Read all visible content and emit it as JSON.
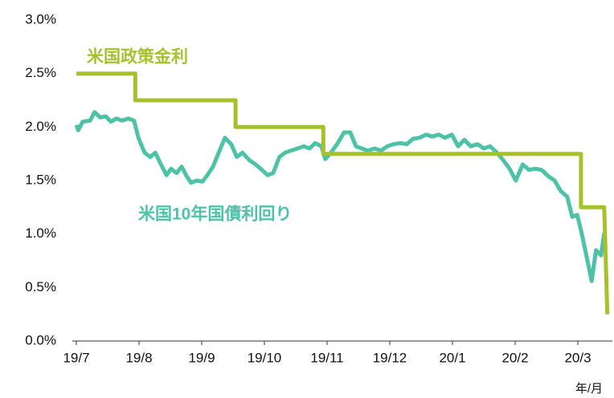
{
  "chart_data": {
    "type": "line",
    "annotations": [
      "米国政策金利",
      "米国10年国債利回り"
    ],
    "xlabel": "年/月",
    "xlim": [
      0,
      8.5
    ],
    "xticks": [
      {
        "value": 0,
        "label": "19/7"
      },
      {
        "value": 1,
        "label": "19/8"
      },
      {
        "value": 2,
        "label": "19/9"
      },
      {
        "value": 3,
        "label": "19/10"
      },
      {
        "value": 4,
        "label": "19/11"
      },
      {
        "value": 5,
        "label": "19/12"
      },
      {
        "value": 6,
        "label": "20/1"
      },
      {
        "value": 7,
        "label": "20/2"
      },
      {
        "value": 8,
        "label": "20/3"
      }
    ],
    "ylim": [
      0,
      3
    ],
    "yticks": [
      {
        "value": 0,
        "label": "0.0%"
      },
      {
        "value": 0.5,
        "label": "0.5%"
      },
      {
        "value": 1,
        "label": "1.0%"
      },
      {
        "value": 1.5,
        "label": "1.5%"
      },
      {
        "value": 2,
        "label": "2.0%"
      },
      {
        "value": 2.5,
        "label": "2.5%"
      },
      {
        "value": 3,
        "label": "3.0%"
      }
    ],
    "series": [
      {
        "name": "米国政策金利",
        "color": "#a5c22c",
        "x": [
          0,
          0.94,
          0.94,
          2.54,
          2.54,
          3.94,
          3.94,
          8.05,
          8.05,
          8.42,
          8.47
        ],
        "values": [
          2.5,
          2.5,
          2.25,
          2.25,
          2,
          2,
          1.75,
          1.75,
          1.25,
          1.25,
          0.25
        ]
      },
      {
        "name": "米国10年国債利回り",
        "color": "#4ec2a7",
        "x": [
          0,
          0.03,
          0.1,
          0.22,
          0.29,
          0.38,
          0.47,
          0.55,
          0.64,
          0.73,
          0.83,
          0.92,
          0.99,
          1.09,
          1.18,
          1.26,
          1.35,
          1.44,
          1.51,
          1.6,
          1.68,
          1.76,
          1.83,
          1.92,
          2.01,
          2.09,
          2.18,
          2.27,
          2.37,
          2.47,
          2.56,
          2.65,
          2.76,
          2.86,
          2.96,
          3.05,
          3.14,
          3.24,
          3.33,
          3.42,
          3.53,
          3.63,
          3.72,
          3.81,
          3.91,
          3.97,
          4.06,
          4.17,
          4.27,
          4.37,
          4.46,
          4.55,
          4.65,
          4.76,
          4.86,
          4.96,
          5.06,
          5.17,
          5.27,
          5.37,
          5.47,
          5.58,
          5.68,
          5.78,
          5.88,
          5.99,
          6.09,
          6.19,
          6.29,
          6.4,
          6.5,
          6.6,
          6.71,
          6.81,
          6.91,
          7.01,
          7.12,
          7.22,
          7.32,
          7.42,
          7.53,
          7.63,
          7.73,
          7.83,
          7.91,
          7.99,
          8.06,
          8.14,
          8.22,
          8.29,
          8.37,
          8.42
        ],
        "values": [
          2.02,
          1.97,
          2.05,
          2.06,
          2.14,
          2.09,
          2.1,
          2.05,
          2.08,
          2.06,
          2.08,
          2.06,
          1.9,
          1.76,
          1.72,
          1.76,
          1.65,
          1.55,
          1.61,
          1.57,
          1.63,
          1.54,
          1.48,
          1.5,
          1.49,
          1.55,
          1.63,
          1.76,
          1.9,
          1.84,
          1.72,
          1.76,
          1.69,
          1.65,
          1.6,
          1.55,
          1.57,
          1.72,
          1.76,
          1.78,
          1.8,
          1.82,
          1.8,
          1.85,
          1.82,
          1.7,
          1.76,
          1.85,
          1.95,
          1.95,
          1.82,
          1.8,
          1.78,
          1.8,
          1.78,
          1.82,
          1.84,
          1.85,
          1.84,
          1.89,
          1.9,
          1.93,
          1.91,
          1.93,
          1.9,
          1.93,
          1.82,
          1.88,
          1.82,
          1.84,
          1.8,
          1.82,
          1.76,
          1.69,
          1.61,
          1.5,
          1.65,
          1.6,
          1.61,
          1.6,
          1.54,
          1.5,
          1.4,
          1.35,
          1.16,
          1.18,
          1.01,
          0.79,
          0.56,
          0.85,
          0.8,
          1.01
        ]
      }
    ]
  }
}
